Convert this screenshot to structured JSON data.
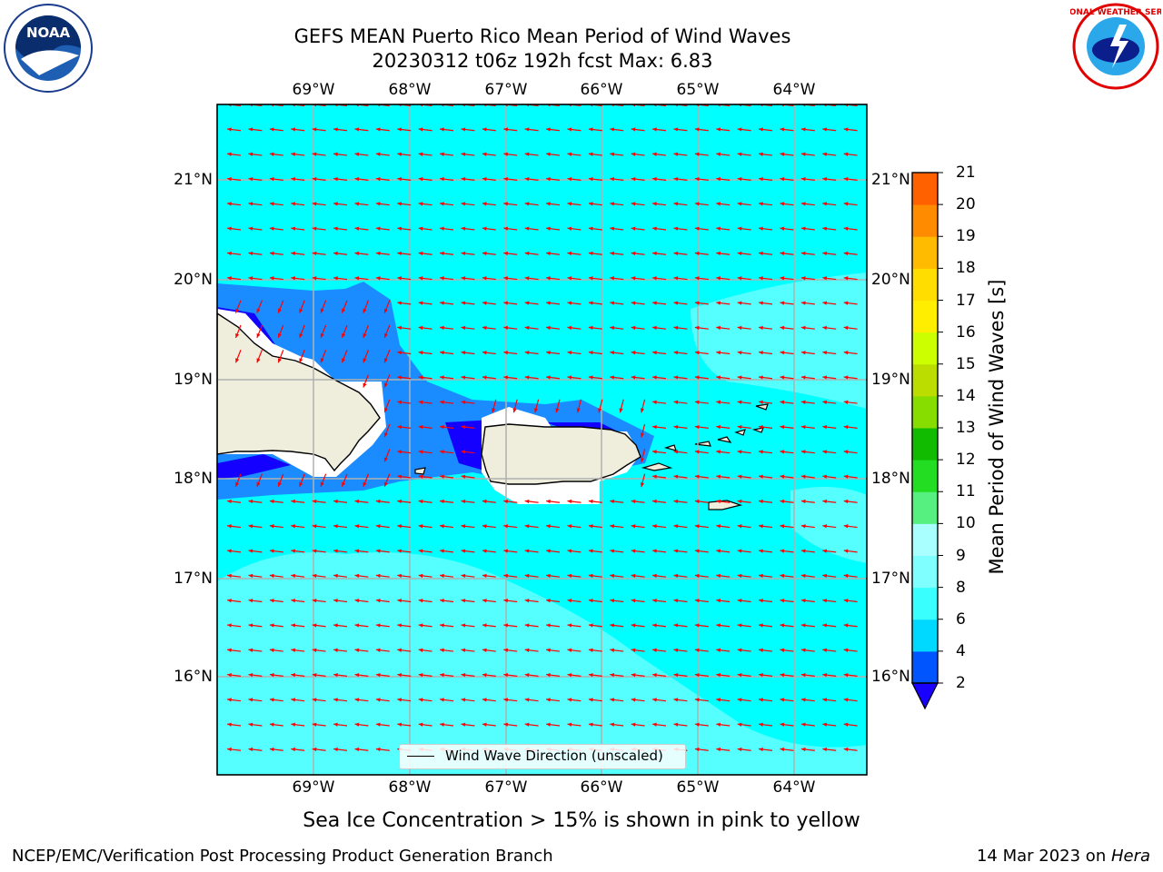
{
  "header": {
    "title_line1": "GEFS MEAN Puerto Rico Mean Period of Wind Waves",
    "title_line2": "20230312 t06z 192h fcst   Max: 6.83"
  },
  "logos": {
    "left": {
      "text": "NOAA",
      "ring_text": "NATIONAL OCEANIC AND ATMOSPHERIC ADMINISTRATION · U.S. DEPARTMENT OF COMMERCE"
    },
    "right": {
      "ring_text": "NATIONAL WEATHER SERVICE"
    }
  },
  "map": {
    "lon_labels": [
      "69°W",
      "68°W",
      "67°W",
      "66°W",
      "65°W",
      "64°W"
    ],
    "lat_labels": [
      "21°N",
      "20°N",
      "19°N",
      "18°N",
      "17°N",
      "16°N"
    ],
    "legend": "Wind Wave Direction (unscaled)",
    "arrow_color": "#ff0000",
    "ocean_color": "#00ffff",
    "land_color": "#efeedd"
  },
  "colorbar": {
    "label": "Mean Period of Wind Waves [s]",
    "ticks": [
      "2",
      "4",
      "6",
      "8",
      "9",
      "10",
      "11",
      "12",
      "13",
      "14",
      "15",
      "16",
      "17",
      "18",
      "19",
      "20",
      "21"
    ],
    "colors": [
      "#0055ff",
      "#00d9ff",
      "#39ffff",
      "#7fffff",
      "#a9ffff",
      "#55f080",
      "#22dd22",
      "#11bb00",
      "#88dd00",
      "#bbdd00",
      "#ccff00",
      "#ffee00",
      "#ffdd00",
      "#ffbb00",
      "#ff8c00",
      "#ff6000",
      "#ff3300",
      "#ff0000"
    ],
    "under_color": "#1a00ff"
  },
  "footer": {
    "note": "Sea Ice Concentration > 15% is shown in pink to yellow",
    "left": "NCEP/EMC/Verification Post Processing Product Generation Branch",
    "right_prefix": "14 Mar 2023 on ",
    "right_italic": "Hera"
  }
}
